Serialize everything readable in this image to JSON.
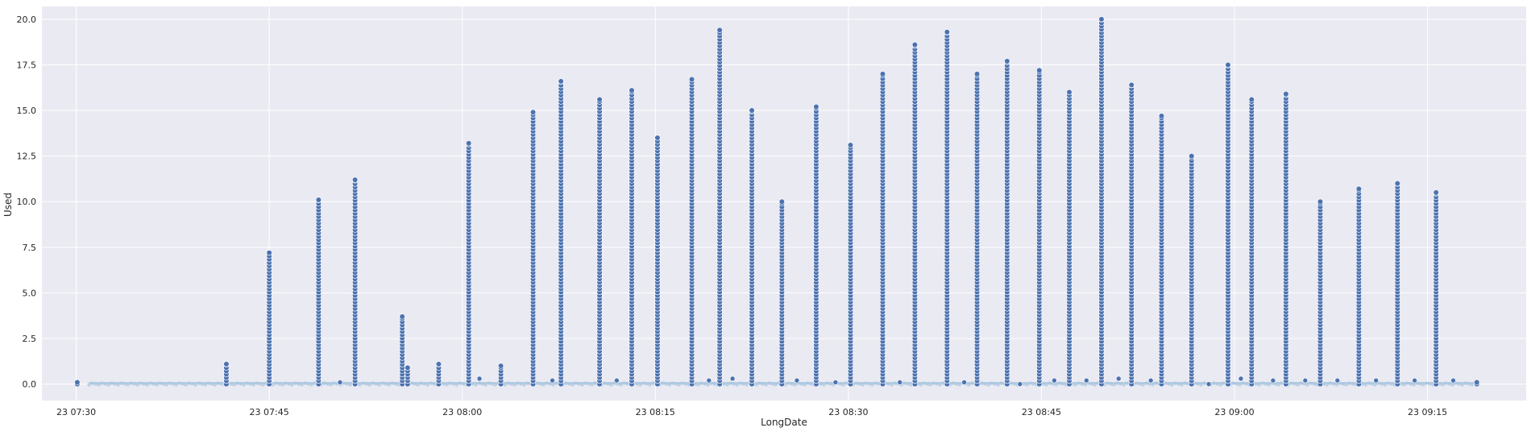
{
  "chart_data": {
    "type": "scatter",
    "title": "",
    "xlabel": "LongDate",
    "ylabel": "Used",
    "grid": true,
    "legend": "none",
    "x_ticks": [
      "23 07:30",
      "23 07:45",
      "23 08:00",
      "23 08:15",
      "23 08:30",
      "23 08:45",
      "23 09:00",
      "23 09:15"
    ],
    "y_ticks": [
      "0.0",
      "2.5",
      "5.0",
      "7.5",
      "10.0",
      "12.5",
      "15.0",
      "17.5",
      "20.0"
    ],
    "xlim": [
      "23 07:27:20",
      "23 09:22:40"
    ],
    "ylim": [
      -0.9,
      20.7
    ],
    "colors": {
      "background": "#eaeaf2",
      "grid": "#ffffff",
      "point": "#4c72b0",
      "point_edge": "#ffffff",
      "baseline": "#a9c6df",
      "text": "#262626"
    },
    "point_spacing": 0.18,
    "baseline": {
      "from": "23 07:31",
      "to": "23 09:19",
      "value": 0.05
    },
    "series": [
      {
        "columns": [
          {
            "x": "23 07:30:05",
            "max": 0.1
          },
          {
            "x": "23 07:41:40",
            "max": 1.1
          },
          {
            "x": "23 07:45:00",
            "max": 7.2
          },
          {
            "x": "23 07:48:50",
            "max": 10.1
          },
          {
            "x": "23 07:51:40",
            "max": 11.2
          },
          {
            "x": "23 07:55:20",
            "max": 3.7
          },
          {
            "x": "23 07:55:45",
            "max": 0.9
          },
          {
            "x": "23 07:58:10",
            "max": 1.1
          },
          {
            "x": "23 08:00:30",
            "max": 13.2
          },
          {
            "x": "23 08:03:00",
            "max": 1.0
          },
          {
            "x": "23 08:05:30",
            "max": 14.9
          },
          {
            "x": "23 08:07:40",
            "max": 16.6
          },
          {
            "x": "23 08:10:40",
            "max": 15.6
          },
          {
            "x": "23 08:13:10",
            "max": 16.1
          },
          {
            "x": "23 08:15:10",
            "max": 13.5
          },
          {
            "x": "23 08:17:50",
            "max": 16.7
          },
          {
            "x": "23 08:20:00",
            "max": 19.4
          },
          {
            "x": "23 08:22:30",
            "max": 15.0
          },
          {
            "x": "23 08:24:50",
            "max": 10.0
          },
          {
            "x": "23 08:27:30",
            "max": 15.2
          },
          {
            "x": "23 08:30:10",
            "max": 13.1
          },
          {
            "x": "23 08:32:40",
            "max": 17.0
          },
          {
            "x": "23 08:35:10",
            "max": 18.6
          },
          {
            "x": "23 08:37:40",
            "max": 19.3
          },
          {
            "x": "23 08:40:00",
            "max": 17.0
          },
          {
            "x": "23 08:42:20",
            "max": 17.7
          },
          {
            "x": "23 08:44:50",
            "max": 17.2
          },
          {
            "x": "23 08:47:10",
            "max": 16.0
          },
          {
            "x": "23 08:49:40",
            "max": 20.0
          },
          {
            "x": "23 08:52:00",
            "max": 16.4
          },
          {
            "x": "23 08:54:20",
            "max": 14.7
          },
          {
            "x": "23 08:56:40",
            "max": 12.5
          },
          {
            "x": "23 08:59:30",
            "max": 17.5
          },
          {
            "x": "23 09:01:20",
            "max": 15.6
          },
          {
            "x": "23 09:04:00",
            "max": 15.9
          },
          {
            "x": "23 09:06:40",
            "max": 10.0
          },
          {
            "x": "23 09:09:40",
            "max": 10.7
          },
          {
            "x": "23 09:12:40",
            "max": 11.0
          },
          {
            "x": "23 09:15:40",
            "max": 10.5
          },
          {
            "x": "23 09:18:50",
            "max": 0.1
          }
        ],
        "low_points": [
          {
            "x": "23 07:50:30",
            "y": 0.1
          },
          {
            "x": "23 08:01:20",
            "y": 0.3
          },
          {
            "x": "23 08:07:00",
            "y": 0.2
          },
          {
            "x": "23 08:12:00",
            "y": 0.2
          },
          {
            "x": "23 08:19:10",
            "y": 0.2
          },
          {
            "x": "23 08:21:00",
            "y": 0.3
          },
          {
            "x": "23 08:26:00",
            "y": 0.2
          },
          {
            "x": "23 08:29:00",
            "y": 0.1
          },
          {
            "x": "23 08:34:00",
            "y": 0.1
          },
          {
            "x": "23 08:39:00",
            "y": 0.1
          },
          {
            "x": "23 08:43:20",
            "y": 0.0
          },
          {
            "x": "23 08:46:00",
            "y": 0.2
          },
          {
            "x": "23 08:48:30",
            "y": 0.2
          },
          {
            "x": "23 08:51:00",
            "y": 0.3
          },
          {
            "x": "23 08:53:30",
            "y": 0.2
          },
          {
            "x": "23 08:58:00",
            "y": 0.0
          },
          {
            "x": "23 09:00:30",
            "y": 0.3
          },
          {
            "x": "23 09:03:00",
            "y": 0.2
          },
          {
            "x": "23 09:05:30",
            "y": 0.2
          },
          {
            "x": "23 09:08:00",
            "y": 0.2
          },
          {
            "x": "23 09:11:00",
            "y": 0.2
          },
          {
            "x": "23 09:14:00",
            "y": 0.2
          },
          {
            "x": "23 09:17:00",
            "y": 0.2
          }
        ]
      }
    ]
  }
}
